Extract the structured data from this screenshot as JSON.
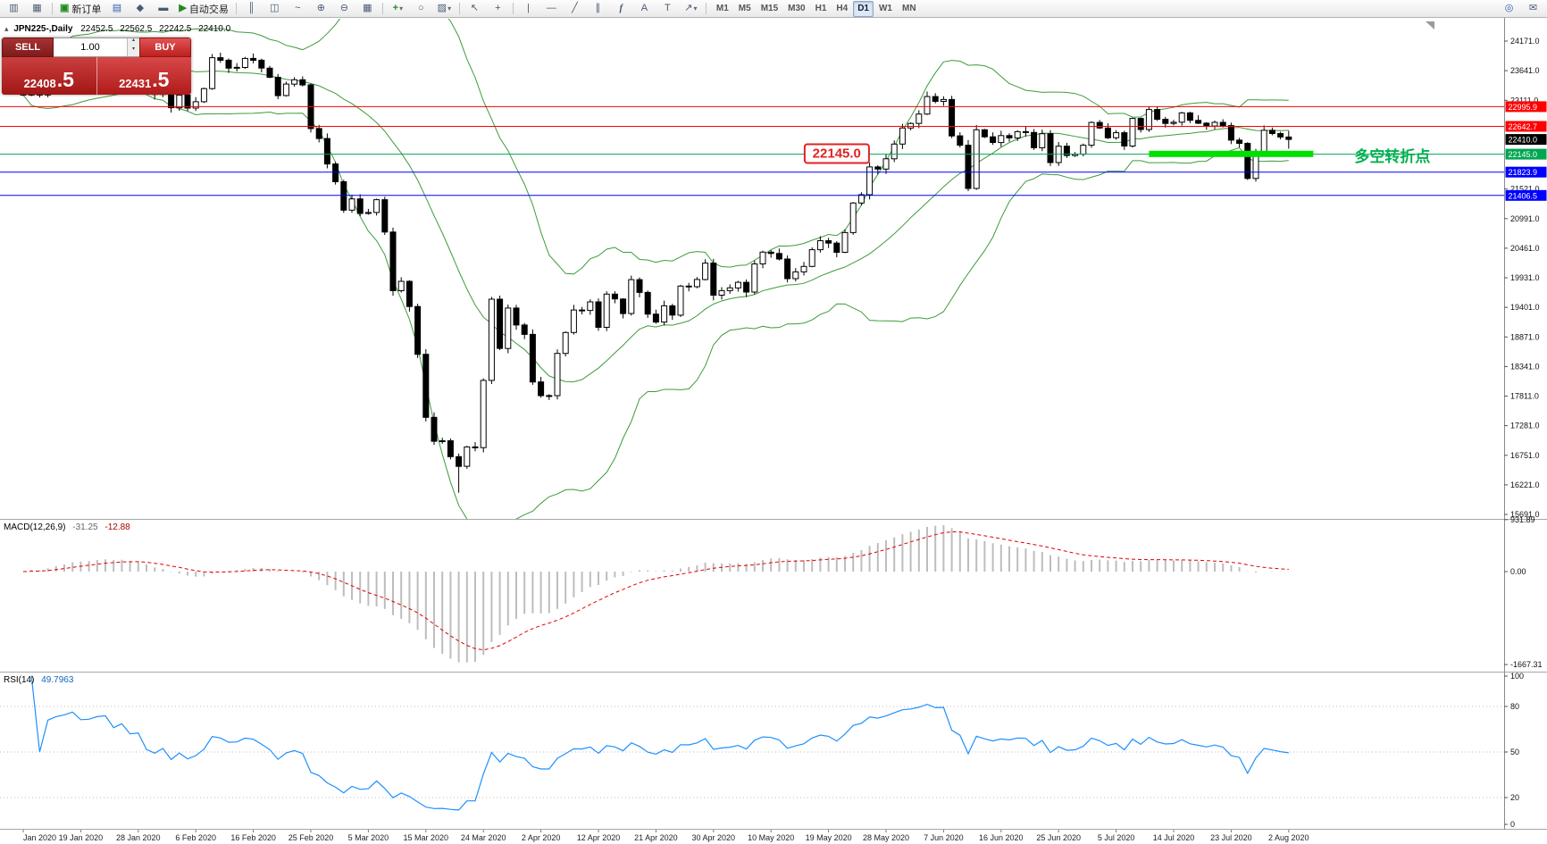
{
  "toolbar": {
    "new_order_label": "新订单",
    "autotrading_label": "自动交易",
    "timeframes": [
      "M1",
      "M5",
      "M15",
      "M30",
      "H1",
      "H4",
      "D1",
      "W1",
      "MN"
    ],
    "active_timeframe": "D1"
  },
  "icons": {
    "collapse_tri": "▴",
    "chart_window": "▥",
    "profiles": "▦",
    "new_order": "▣",
    "market_watch": "▤",
    "navigator": "◆",
    "terminal": "▬",
    "play": "▶",
    "bars": "║",
    "candles": "◫",
    "line_chart": "~",
    "zoom_in": "⊕",
    "zoom_out": "⊖",
    "tile": "▦",
    "indicators": "+",
    "cycles": "○",
    "template": "▨",
    "caret": "▾",
    "cursor": "↖",
    "crosshair": "+",
    "vline": "|",
    "hline": "—",
    "trendline": "╱",
    "channel": "∥",
    "fibonacci": "f",
    "text_tool": "A",
    "label_tool": "T",
    "arrow_tool": "↗",
    "search": "◎",
    "mail": "✉",
    "spin_up": "▴",
    "spin_down": "▾"
  },
  "chart": {
    "symbol_title": "JPN225-,Daily",
    "open": "22452.5",
    "high": "22562.5",
    "low": "22242.5",
    "close": "22410.0"
  },
  "trade_panel": {
    "sell_label": "SELL",
    "buy_label": "BUY",
    "volume": "1.00",
    "sell_price": "22408.5",
    "buy_price": "22431.5",
    "sell_price_main": "22408",
    "sell_price_frac": ".5",
    "buy_price_main": "22431",
    "buy_price_frac": ".5"
  },
  "chart_data": {
    "type": "candlestick",
    "symbol": "JPN225-",
    "timeframe": "Daily",
    "y_axis": {
      "labels": [
        "24171.0",
        "23641.0",
        "23111.0",
        "22581.0",
        "22051.0",
        "21521.0",
        "20991.0",
        "20461.0",
        "19931.0",
        "19401.0",
        "18871.0",
        "18341.0",
        "17811.0",
        "17281.0",
        "16751.0",
        "16221.0",
        "15691.0"
      ]
    },
    "x_axis": {
      "labels": [
        "Jan 2020",
        "19 Jan 2020",
        "28 Jan 2020",
        "6 Feb 2020",
        "16 Feb 2020",
        "25 Feb 2020",
        "5 Mar 2020",
        "15 Mar 2020",
        "24 Mar 2020",
        "2 Apr 2020",
        "12 Apr 2020",
        "21 Apr 2020",
        "30 Apr 2020",
        "10 May 2020",
        "19 May 2020",
        "28 May 2020",
        "7 Jun 2020",
        "16 Jun 2020",
        "25 Jun 2020",
        "5 Jul 2020",
        "14 Jul 2020",
        "23 Jul 2020",
        "2 Aug 2020"
      ]
    },
    "h_lines": [
      {
        "price": 22995.9,
        "label": "22995.9",
        "color": "#ff0000"
      },
      {
        "price": 22642.7,
        "label": "22642.7",
        "color": "#ff0000"
      },
      {
        "price": 22145.0,
        "label": "22145.0",
        "color": "#00a651"
      },
      {
        "price": 21823.9,
        "label": "21823.9",
        "color": "#0000ff"
      },
      {
        "price": 21406.5,
        "label": "21406.5",
        "color": "#0000ff"
      }
    ],
    "current_price": {
      "value": 22410.0,
      "label": "22410.0",
      "box_color": "#000000"
    },
    "annotations": {
      "level_callout": {
        "text": "22145.0",
        "anchor_index": 99,
        "anchor_price": 22148,
        "color": "#e22222"
      },
      "turning_point": {
        "text": "多空转折点",
        "anchor_index": 162,
        "anchor_price": 22150,
        "color": "#00b050"
      },
      "highlight_segment": {
        "start_index": 137,
        "end_index": 157,
        "price": 22150,
        "color": "#00e000"
      }
    },
    "candles": {
      "first_open": 23320,
      "closes": [
        23205,
        23575,
        23205,
        23740,
        23850,
        23915,
        24025,
        23916,
        23933,
        24041,
        24083,
        23864,
        24031,
        23795,
        23827,
        23344,
        23216,
        23379,
        22977,
        23205,
        22972,
        23085,
        23320,
        23874,
        23828,
        23686,
        23700,
        23861,
        23828,
        23687,
        23523,
        23194,
        23401,
        23479,
        23387,
        22605,
        22426,
        21970,
        21651,
        21143,
        21344,
        21083,
        21100,
        21329,
        20750,
        19699,
        19867,
        19416,
        18560,
        17431,
        17002,
        17011,
        16727,
        16553,
        16900,
        16888,
        18092,
        19547,
        18665,
        19389,
        19085,
        18917,
        18065,
        17819,
        17820,
        18576,
        18950,
        19353,
        19346,
        19499,
        19043,
        19638,
        19551,
        19290,
        19897,
        19669,
        19280,
        19138,
        19429,
        19262,
        19783,
        19771,
        19900,
        20194,
        19619,
        19700,
        19750,
        19850,
        19675,
        20179,
        20390,
        20366,
        20267,
        19915,
        20037,
        20134,
        20433,
        20595,
        20552,
        20388,
        20741,
        21271,
        21419,
        21916,
        21878,
        22062,
        22326,
        22614,
        22696,
        22864,
        23178,
        23091,
        23125,
        22473,
        22305,
        21531,
        22582,
        22456,
        22355,
        22479,
        22437,
        22549,
        22534,
        22260,
        22512,
        21995,
        22288,
        22122,
        22146,
        22306,
        22714,
        22615,
        22439,
        22529,
        22291,
        22785,
        22587,
        22946,
        22770,
        22697,
        22717,
        22884,
        22751,
        22700,
        22650,
        22715,
        22657,
        22397,
        22339,
        21710,
        22195,
        22573,
        22515,
        22452,
        22410
      ],
      "low_overrides": {
        "53": 16080
      },
      "last_candle": [
        22452.5,
        22562.5,
        22242.5,
        22410.0
      ]
    },
    "indicators": {
      "bollinger": {
        "period": 20,
        "deviation": 2,
        "color": "#3c9c3c"
      },
      "macd": {
        "label": "MACD(12,26,9)",
        "value_main": "-31.25",
        "value_signal": "-12.88",
        "scale_labels": [
          "931.89",
          "0.00",
          "-1667.31"
        ],
        "scale_values": [
          931.89,
          0,
          -1667.31
        ],
        "histogram_color": "#bdbdbd",
        "signal_color": "#e00000"
      },
      "rsi": {
        "label": "RSI(14)",
        "value": "49.7963",
        "levels": [
          80,
          50,
          20
        ],
        "scale_labels": [
          "100",
          "80",
          "50",
          "20",
          "0"
        ],
        "scale_values": [
          100,
          80,
          50,
          20,
          0
        ],
        "color": "#1e90ff"
      }
    }
  }
}
